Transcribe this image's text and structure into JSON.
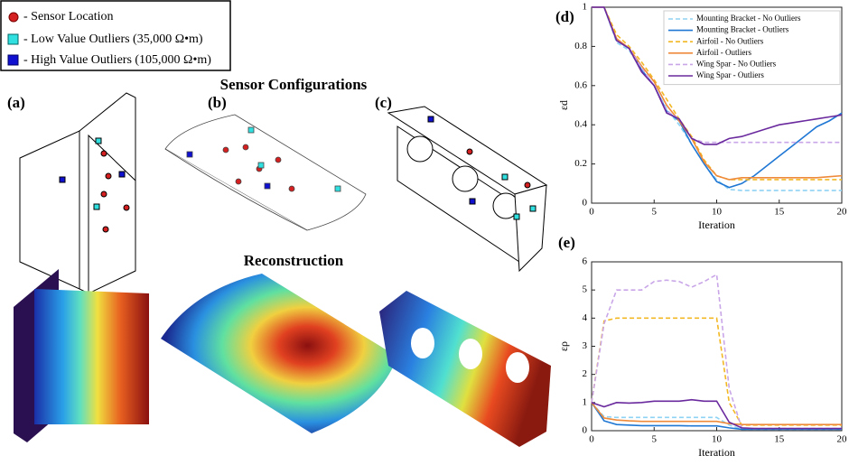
{
  "legend_box": {
    "items": [
      "- Sensor Location",
      "- Low Value Outliers (35,000 Ω•m)",
      "- High Value Outliers (105,000 Ω•m)"
    ]
  },
  "panels": {
    "a": "(a)",
    "b": "(b)",
    "c": "(c)",
    "sensor_title": "Sensor Configurations",
    "recon_title": "Reconstruction"
  },
  "chart_data": [
    {
      "type": "line",
      "label": "(d)",
      "xlabel": "Iteration",
      "ylabel": "εd",
      "x": [
        0,
        1,
        2,
        3,
        4,
        5,
        6,
        7,
        8,
        9,
        10,
        11,
        12,
        13,
        14,
        15,
        16,
        17,
        18,
        19,
        20
      ],
      "xlim": [
        0,
        20
      ],
      "xticks": [
        0,
        5,
        10,
        15,
        20
      ],
      "ylim": [
        0,
        1
      ],
      "yticks": [
        0,
        0.2,
        0.4,
        0.6,
        0.8,
        1
      ],
      "legend": "upper right",
      "series": [
        {
          "name": "Mounting Bracket - No Outliers",
          "color": "#8fd3f4",
          "style": "dashed",
          "values": [
            1,
            1,
            0.82,
            0.78,
            0.68,
            0.6,
            0.48,
            0.4,
            0.3,
            0.2,
            0.12,
            0.07,
            0.065,
            0.065,
            0.065,
            0.065,
            0.065,
            0.065,
            0.065,
            0.065,
            0.065
          ]
        },
        {
          "name": "Mounting Bracket - Outliers",
          "color": "#1f77d4",
          "style": "solid",
          "values": [
            1,
            1,
            0.83,
            0.79,
            0.68,
            0.6,
            0.47,
            0.42,
            0.3,
            0.2,
            0.11,
            0.08,
            0.1,
            0.14,
            0.19,
            0.24,
            0.29,
            0.34,
            0.39,
            0.42,
            0.46
          ]
        },
        {
          "name": "Airfoil - No Outliers",
          "color": "#f2b824",
          "style": "dashed",
          "values": [
            1,
            1,
            0.86,
            0.8,
            0.72,
            0.63,
            0.53,
            0.43,
            0.34,
            0.22,
            0.14,
            0.12,
            0.12,
            0.12,
            0.12,
            0.12,
            0.12,
            0.12,
            0.12,
            0.12,
            0.12
          ]
        },
        {
          "name": "Airfoil - Outliers",
          "color": "#ee8a3a",
          "style": "solid",
          "values": [
            1,
            1,
            0.84,
            0.79,
            0.7,
            0.62,
            0.5,
            0.42,
            0.33,
            0.21,
            0.14,
            0.12,
            0.13,
            0.13,
            0.13,
            0.13,
            0.13,
            0.13,
            0.13,
            0.135,
            0.14
          ]
        },
        {
          "name": "Wing Spar - No Outliers",
          "color": "#c9a6e8",
          "style": "dashed",
          "values": [
            1,
            1,
            0.83,
            0.79,
            0.69,
            0.6,
            0.47,
            0.43,
            0.33,
            0.31,
            0.31,
            0.31,
            0.31,
            0.31,
            0.31,
            0.31,
            0.31,
            0.31,
            0.31,
            0.31,
            0.31
          ]
        },
        {
          "name": "Wing Spar - Outliers",
          "color": "#6a2a9e",
          "style": "solid",
          "values": [
            1,
            1,
            0.83,
            0.79,
            0.67,
            0.6,
            0.46,
            0.43,
            0.33,
            0.3,
            0.3,
            0.33,
            0.34,
            0.36,
            0.38,
            0.4,
            0.41,
            0.42,
            0.43,
            0.44,
            0.45
          ]
        }
      ]
    },
    {
      "type": "line",
      "label": "(e)",
      "xlabel": "Iteration",
      "ylabel": "ερ",
      "x": [
        0,
        1,
        2,
        3,
        4,
        5,
        6,
        7,
        8,
        9,
        10,
        11,
        12,
        13,
        14,
        15,
        16,
        17,
        18,
        19,
        20
      ],
      "xlim": [
        0,
        20
      ],
      "xticks": [
        0,
        5,
        10,
        15,
        20
      ],
      "ylim": [
        0,
        6
      ],
      "yticks": [
        0,
        1,
        2,
        3,
        4,
        5,
        6
      ],
      "series": [
        {
          "color": "#8fd3f4",
          "style": "dashed",
          "values": [
            1,
            0.5,
            0.47,
            0.47,
            0.47,
            0.47,
            0.47,
            0.47,
            0.47,
            0.47,
            0.47,
            0.2,
            0.05,
            0.05,
            0.05,
            0.05,
            0.05,
            0.05,
            0.05,
            0.05,
            0.05
          ]
        },
        {
          "color": "#1f77d4",
          "style": "solid",
          "values": [
            1,
            0.35,
            0.22,
            0.2,
            0.18,
            0.18,
            0.18,
            0.18,
            0.17,
            0.17,
            0.17,
            0.1,
            0.05,
            0.05,
            0.05,
            0.05,
            0.05,
            0.05,
            0.05,
            0.05,
            0.05
          ]
        },
        {
          "color": "#f2b824",
          "style": "dashed",
          "values": [
            1,
            3.9,
            4,
            4,
            4,
            4,
            4,
            4,
            4,
            4,
            4,
            1,
            0.2,
            0.2,
            0.2,
            0.2,
            0.2,
            0.2,
            0.2,
            0.2,
            0.2
          ]
        },
        {
          "color": "#ee8a3a",
          "style": "solid",
          "values": [
            1,
            0.45,
            0.38,
            0.35,
            0.33,
            0.33,
            0.33,
            0.33,
            0.33,
            0.33,
            0.33,
            0.25,
            0.22,
            0.22,
            0.22,
            0.22,
            0.22,
            0.22,
            0.22,
            0.22,
            0.22
          ]
        },
        {
          "color": "#c9a6e8",
          "style": "dashed",
          "values": [
            1,
            3.8,
            5,
            5,
            5,
            5.3,
            5.35,
            5.3,
            5.1,
            5.3,
            5.55,
            1.5,
            0.1,
            0.08,
            0.08,
            0.08,
            0.08,
            0.08,
            0.08,
            0.08,
            0.08
          ]
        },
        {
          "color": "#6a2a9e",
          "style": "solid",
          "values": [
            1,
            0.85,
            1,
            0.98,
            1,
            1.05,
            1.05,
            1.05,
            1.1,
            1.05,
            1.05,
            0.3,
            0.1,
            0.08,
            0.08,
            0.08,
            0.08,
            0.08,
            0.08,
            0.08,
            0.08
          ]
        }
      ]
    }
  ]
}
